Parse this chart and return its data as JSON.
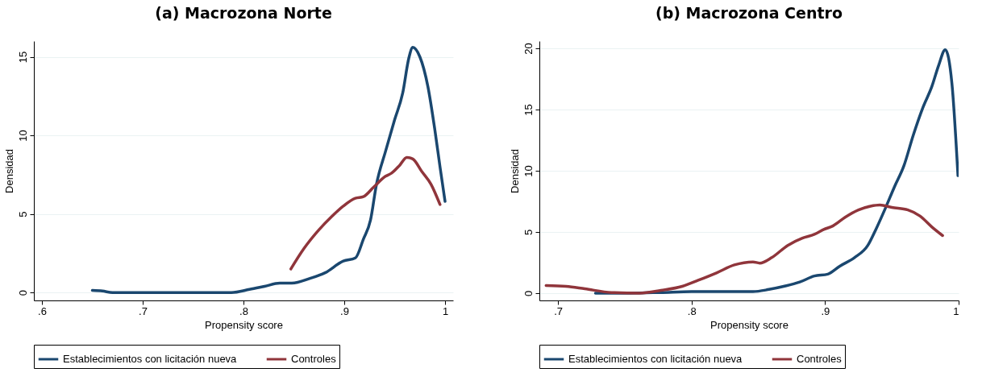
{
  "chart_data": [
    {
      "type": "line",
      "title": "(a) Macrozona Norte",
      "xlabel": "Propensity score",
      "ylabel": "Densidad",
      "xlim": [
        0.592,
        1.008
      ],
      "ylim": [
        -0.5,
        16
      ],
      "xticks": [
        {
          "value": 0.6,
          "label": ".6"
        },
        {
          "value": 0.7,
          "label": ".7"
        },
        {
          "value": 0.8,
          "label": ".8"
        },
        {
          "value": 0.9,
          "label": ".9"
        },
        1
      ],
      "yticks": [
        0,
        5,
        10,
        15
      ],
      "grid": "y",
      "legend": "bottom",
      "series": [
        {
          "name": "Establecimientos con licitación nueva",
          "color": "#1a476f",
          "x": [
            0.65,
            0.66,
            0.67,
            0.7,
            0.75,
            0.788,
            0.806,
            0.821,
            0.836,
            0.848,
            0.866,
            0.881,
            0.899,
            0.911,
            0.919,
            0.926,
            0.932,
            0.941,
            0.95,
            0.958,
            0.964,
            0.968,
            0.975,
            0.983,
            0.99,
            0.995,
            1.0
          ],
          "values": [
            0.14,
            0.1,
            0,
            0,
            0,
            0,
            0.2,
            0.4,
            0.6,
            0.6,
            0.9,
            1.26,
            2.0,
            2.2,
            3.4,
            4.6,
            6.9,
            9.0,
            11.0,
            12.7,
            14.9,
            15.6,
            15.0,
            13.1,
            10.3,
            8.0,
            5.8
          ]
        },
        {
          "name": "Controles",
          "color": "#90353b",
          "x": [
            0.847,
            0.86,
            0.875,
            0.887,
            0.899,
            0.911,
            0.919,
            0.929,
            0.941,
            0.947,
            0.955,
            0.962,
            0.968,
            0.977,
            0.986,
            0.995
          ],
          "values": [
            1.5,
            2.8,
            4.0,
            4.8,
            5.5,
            6.0,
            6.1,
            6.7,
            7.4,
            7.6,
            8.1,
            8.6,
            8.5,
            7.7,
            6.9,
            5.6
          ]
        }
      ]
    },
    {
      "type": "line",
      "title": "(b) Macrozona Centro",
      "xlabel": "Propensity score",
      "ylabel": "Densidad",
      "xlim": [
        0.686,
        1.0
      ],
      "ylim": [
        -0.6,
        20.6
      ],
      "xticks": [
        {
          "value": 0.7,
          "label": ".7"
        },
        {
          "value": 0.8,
          "label": ".8"
        },
        {
          "value": 0.9,
          "label": ".9"
        },
        1
      ],
      "yticks": [
        0,
        5,
        10,
        15,
        20
      ],
      "grid": "y",
      "legend": "bottom",
      "series": [
        {
          "name": "Establecimientos con licitación nueva",
          "color": "#1a476f",
          "x": [
            0.728,
            0.754,
            0.777,
            0.8,
            0.823,
            0.846,
            0.858,
            0.869,
            0.881,
            0.892,
            0.902,
            0.911,
            0.922,
            0.932,
            0.938,
            0.945,
            0.952,
            0.959,
            0.966,
            0.973,
            0.98,
            0.985,
            0.99,
            0.995,
            0.9995
          ],
          "values": [
            0,
            0,
            0.05,
            0.12,
            0.12,
            0.12,
            0.3,
            0.55,
            0.9,
            1.4,
            1.55,
            2.2,
            2.9,
            3.9,
            5.2,
            6.9,
            8.7,
            10.4,
            12.9,
            15.1,
            16.9,
            18.6,
            19.9,
            17.1,
            9.6
          ]
        },
        {
          "name": "Controles",
          "color": "#90353b",
          "x": [
            0.691,
            0.706,
            0.72,
            0.74,
            0.761,
            0.777,
            0.793,
            0.805,
            0.819,
            0.832,
            0.846,
            0.851,
            0.86,
            0.872,
            0.883,
            0.892,
            0.899,
            0.906,
            0.915,
            0.925,
            0.934,
            0.941,
            0.95,
            0.962,
            0.971,
            0.98,
            0.988
          ],
          "values": [
            0.62,
            0.55,
            0.35,
            0.05,
            0,
            0.22,
            0.55,
            1.05,
            1.67,
            2.3,
            2.55,
            2.45,
            2.9,
            3.9,
            4.5,
            4.8,
            5.2,
            5.5,
            6.2,
            6.8,
            7.1,
            7.2,
            7.0,
            6.8,
            6.3,
            5.4,
            4.7
          ]
        }
      ]
    }
  ]
}
